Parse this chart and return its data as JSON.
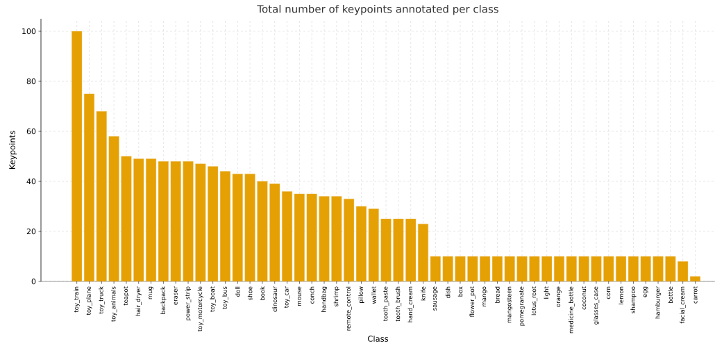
{
  "chart_data": {
    "type": "bar",
    "title": "Total number of keypoints annotated per class",
    "xlabel": "Class",
    "ylabel": "Keypoints",
    "categories": [
      "toy_train",
      "toy_plane",
      "toy_truck",
      "toy_animals",
      "teapot",
      "hair_dryer",
      "mug",
      "backpack",
      "eraser",
      "power_strip",
      "toy_motorcycle",
      "toy_boat",
      "toy_bus",
      "doll",
      "shoe",
      "book",
      "dinosaur",
      "toy_car",
      "mouse",
      "conch",
      "handbag",
      "shrimp",
      "remote_control",
      "pillow",
      "wallet",
      "tooth_paste",
      "tooth_brush",
      "hand_cream",
      "knife",
      "sausage",
      "dish",
      "box",
      "flower_pot",
      "mango",
      "bread",
      "mangosteen",
      "pomegranate",
      "lotus_root",
      "light",
      "orange",
      "medicine_bottle",
      "coconut",
      "glasses_case",
      "corn",
      "lemon",
      "shampoo",
      "egg",
      "hamburger",
      "bottle",
      "facial_cream",
      "carrot"
    ],
    "values": [
      100,
      75,
      68,
      58,
      50,
      49,
      49,
      48,
      48,
      48,
      47,
      46,
      44,
      43,
      43,
      40,
      39,
      36,
      35,
      35,
      34,
      34,
      33,
      30,
      29,
      25,
      25,
      25,
      23,
      10,
      10,
      10,
      10,
      10,
      10,
      10,
      10,
      10,
      10,
      10,
      10,
      10,
      10,
      10,
      10,
      10,
      10,
      10,
      10,
      8,
      2
    ],
    "color": "#e5a004",
    "ylim": [
      0,
      105
    ],
    "yticks": [
      0,
      20,
      40,
      60,
      80,
      100
    ],
    "grid": true
  }
}
